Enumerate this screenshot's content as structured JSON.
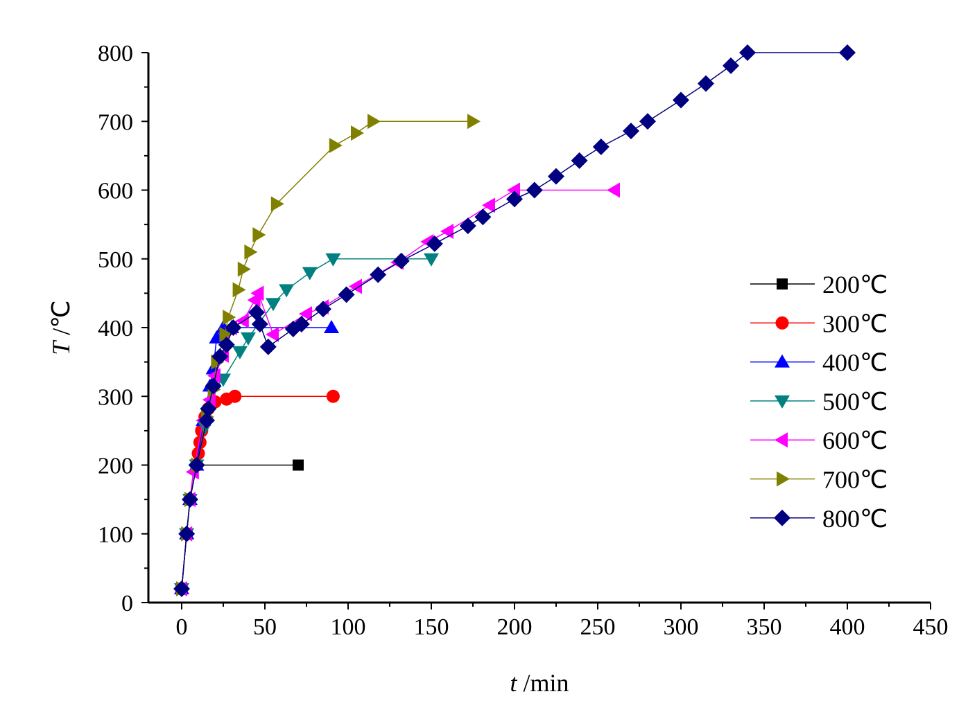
{
  "chart_data": {
    "type": "line",
    "xlabel_var": "t",
    "xlabel_unit": " /min",
    "ylabel_var": "T",
    "ylabel_unit": " /℃",
    "xlim": [
      -20,
      450
    ],
    "ylim": [
      0,
      800
    ],
    "xticks": [
      0,
      50,
      100,
      150,
      200,
      250,
      300,
      350,
      400,
      450
    ],
    "yticks": [
      0,
      100,
      200,
      300,
      400,
      500,
      600,
      700,
      800
    ],
    "grid": false,
    "legend": "right",
    "series": [
      {
        "name": "200℃",
        "color": "#000000",
        "marker": "square",
        "points": [
          [
            0,
            20
          ],
          [
            3,
            100
          ],
          [
            5,
            150
          ],
          [
            9,
            200
          ],
          [
            70,
            200
          ]
        ]
      },
      {
        "name": "300℃",
        "color": "#ff0000",
        "marker": "circle",
        "points": [
          [
            0,
            20
          ],
          [
            3,
            100
          ],
          [
            5,
            150
          ],
          [
            9,
            200
          ],
          [
            10,
            217
          ],
          [
            11,
            233
          ],
          [
            12,
            250
          ],
          [
            14,
            270
          ],
          [
            16,
            282
          ],
          [
            20,
            292
          ],
          [
            27,
            296
          ],
          [
            32,
            300
          ],
          [
            91,
            300
          ]
        ]
      },
      {
        "name": "400℃",
        "color": "#0000ff",
        "marker": "triangle-up",
        "points": [
          [
            0,
            20
          ],
          [
            3,
            100
          ],
          [
            5,
            150
          ],
          [
            9,
            200
          ],
          [
            13,
            265
          ],
          [
            17,
            315
          ],
          [
            19,
            340
          ],
          [
            21,
            385
          ],
          [
            25,
            400
          ],
          [
            30,
            400
          ],
          [
            90,
            400
          ]
        ]
      },
      {
        "name": "500℃",
        "color": "#008080",
        "marker": "triangle-down",
        "points": [
          [
            0,
            20
          ],
          [
            3,
            100
          ],
          [
            5,
            150
          ],
          [
            9,
            200
          ],
          [
            14,
            255
          ],
          [
            19,
            310
          ],
          [
            25,
            325
          ],
          [
            35,
            365
          ],
          [
            40,
            385
          ],
          [
            55,
            435
          ],
          [
            63,
            455
          ],
          [
            77,
            480
          ],
          [
            91,
            500
          ],
          [
            150,
            500
          ]
        ]
      },
      {
        "name": "600℃",
        "color": "#ff00ff",
        "marker": "triangle-left",
        "points": [
          [
            0,
            20
          ],
          [
            3,
            100
          ],
          [
            5,
            150
          ],
          [
            7,
            190
          ],
          [
            13,
            265
          ],
          [
            17,
            295
          ],
          [
            20,
            330
          ],
          [
            25,
            360
          ],
          [
            30,
            400
          ],
          [
            37,
            410
          ],
          [
            44,
            440
          ],
          [
            46,
            450
          ],
          [
            55,
            390
          ],
          [
            75,
            420
          ],
          [
            85,
            430
          ],
          [
            105,
            460
          ],
          [
            130,
            495
          ],
          [
            148,
            525
          ],
          [
            160,
            540
          ],
          [
            185,
            578
          ],
          [
            200,
            600
          ],
          [
            260,
            600
          ]
        ]
      },
      {
        "name": "700℃",
        "color": "#808000",
        "marker": "triangle-right",
        "points": [
          [
            0,
            20
          ],
          [
            3,
            100
          ],
          [
            5,
            150
          ],
          [
            9,
            200
          ],
          [
            15,
            270
          ],
          [
            19,
            310
          ],
          [
            21,
            350
          ],
          [
            26,
            390
          ],
          [
            28,
            415
          ],
          [
            34,
            455
          ],
          [
            37,
            485
          ],
          [
            41,
            510
          ],
          [
            46,
            535
          ],
          [
            57,
            580
          ],
          [
            92,
            665
          ],
          [
            105,
            683
          ],
          [
            115,
            700
          ],
          [
            175,
            700
          ]
        ]
      },
      {
        "name": "800℃",
        "color": "#000080",
        "marker": "diamond",
        "points": [
          [
            0,
            20
          ],
          [
            3,
            100
          ],
          [
            5,
            150
          ],
          [
            9,
            200
          ],
          [
            15,
            265
          ],
          [
            16,
            282
          ],
          [
            19,
            315
          ],
          [
            23,
            358
          ],
          [
            27,
            375
          ],
          [
            31,
            400
          ],
          [
            45,
            422
          ],
          [
            47,
            405
          ],
          [
            52,
            372
          ],
          [
            67,
            398
          ],
          [
            72,
            405
          ],
          [
            85,
            427
          ],
          [
            99,
            448
          ],
          [
            118,
            477
          ],
          [
            132,
            497
          ],
          [
            152,
            522
          ],
          [
            172,
            548
          ],
          [
            181,
            561
          ],
          [
            200,
            587
          ],
          [
            212,
            600
          ],
          [
            225,
            620
          ],
          [
            239,
            643
          ],
          [
            252,
            663
          ],
          [
            270,
            686
          ],
          [
            280,
            700
          ],
          [
            300,
            731
          ],
          [
            315,
            755
          ],
          [
            330,
            781
          ],
          [
            340,
            800
          ],
          [
            400,
            800
          ]
        ]
      }
    ]
  }
}
